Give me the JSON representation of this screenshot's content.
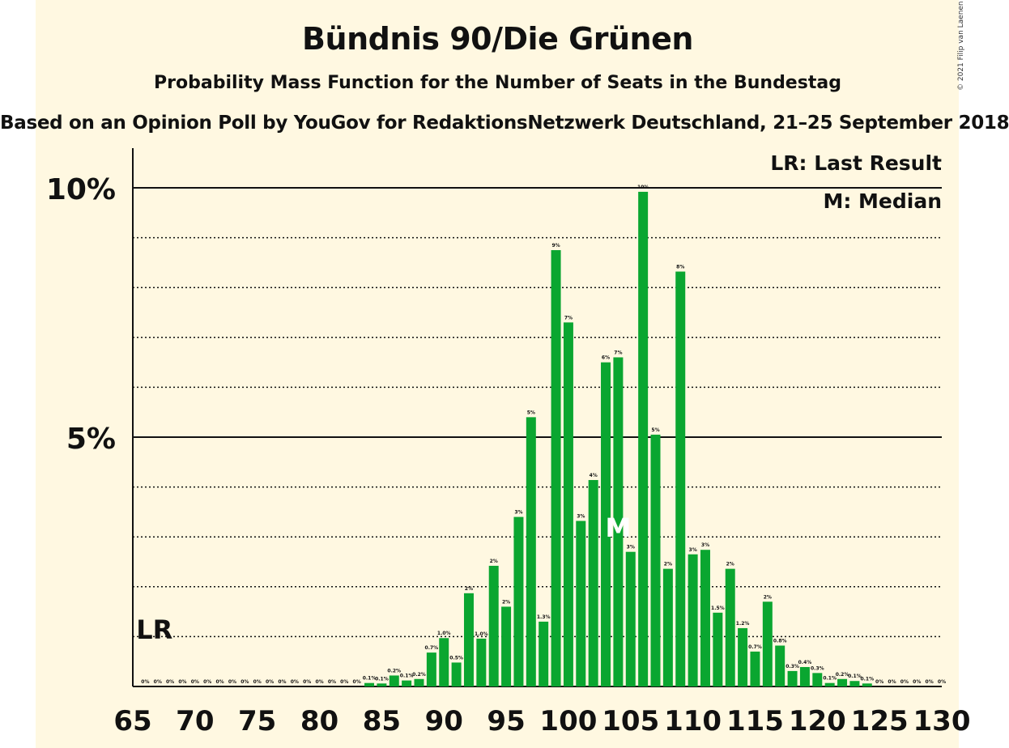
{
  "header": {
    "title": "Bündnis 90/Die Grünen",
    "subtitle": "Probability Mass Function for the Number of Seats in the Bundestag",
    "subtitle2": "Based on an Opinion Poll by YouGov for RedaktionsNetzwerk Deutschland, 21–25 September 2018",
    "copyright": "© 2021 Filip van Laenen"
  },
  "legend": {
    "last_result": "LR: Last Result",
    "median": "M: Median"
  },
  "colors": {
    "bar": "#0aa630",
    "background": "#fff8e1",
    "text": "#111111"
  },
  "chart_data": {
    "type": "bar",
    "title": "Bündnis 90/Die Grünen",
    "x": [
      66,
      67,
      68,
      69,
      70,
      71,
      72,
      73,
      74,
      75,
      76,
      77,
      78,
      79,
      80,
      81,
      82,
      83,
      84,
      85,
      86,
      87,
      88,
      89,
      90,
      91,
      92,
      93,
      94,
      95,
      96,
      97,
      98,
      99,
      100,
      101,
      102,
      103,
      104,
      105,
      106,
      107,
      108,
      109,
      110,
      111,
      112,
      113,
      114,
      115,
      116,
      117,
      118,
      119,
      120,
      121,
      122,
      123,
      124,
      125,
      126,
      127,
      128,
      129,
      130
    ],
    "values": [
      0,
      0,
      0,
      0,
      0,
      0,
      0,
      0,
      0,
      0,
      0,
      0,
      0,
      0,
      0,
      0,
      0,
      0,
      0.07,
      0.06,
      0.22,
      0.12,
      0.15,
      0.68,
      0.97,
      0.48,
      1.87,
      0.96,
      2.42,
      1.6,
      3.4,
      5.4,
      1.3,
      8.75,
      7.3,
      3.32,
      4.14,
      6.5,
      6.6,
      2.7,
      9.92,
      5.05,
      2.36,
      8.32,
      2.65,
      2.74,
      1.48,
      2.36,
      1.17,
      0.7,
      1.7,
      0.82,
      0.31,
      0.39,
      0.27,
      0.07,
      0.15,
      0.11,
      0.06,
      0,
      0,
      0,
      0,
      0,
      0
    ],
    "value_labels": [
      "0%",
      "0%",
      "0%",
      "0%",
      "0%",
      "0%",
      "0%",
      "0%",
      "0%",
      "0%",
      "0%",
      "0%",
      "0%",
      "0%",
      "0%",
      "0%",
      "0%",
      "0%",
      "0.1%",
      "0.1%",
      "0.2%",
      "0.1%",
      "0.2%",
      "0.7%",
      "1.0%",
      "0.5%",
      "2%",
      "1.0%",
      "2%",
      "2%",
      "3%",
      "5%",
      "1.3%",
      "9%",
      "7%",
      "3%",
      "4%",
      "6%",
      "7%",
      "3%",
      "10%",
      "5%",
      "2%",
      "8%",
      "3%",
      "3%",
      "1.5%",
      "2%",
      "1.2%",
      "0.7%",
      "2%",
      "0.8%",
      "0.3%",
      "0.4%",
      "0.3%",
      "0.1%",
      "0.2%",
      "0.1%",
      "0.1%",
      "0%",
      "0%",
      "0%",
      "0%",
      "0%",
      "0%"
    ],
    "x_ticks": [
      65,
      70,
      75,
      80,
      85,
      90,
      95,
      100,
      105,
      110,
      115,
      120,
      125,
      130
    ],
    "x_tick_labels": [
      "65",
      "70",
      "75",
      "80",
      "85",
      "90",
      "95",
      "100",
      "105",
      "110",
      "115",
      "120",
      "125",
      "130"
    ],
    "y_ticks": [
      5,
      10
    ],
    "y_tick_labels": [
      "5%",
      "10%"
    ],
    "ylim": [
      0,
      10.8
    ],
    "xlim": [
      65,
      130
    ],
    "last_result": 67,
    "last_result_label": "LR",
    "median": 104,
    "median_label": "M",
    "grid": true,
    "legend_position": "top-right"
  }
}
